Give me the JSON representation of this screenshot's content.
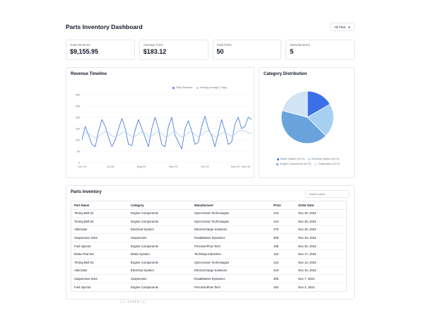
{
  "header": {
    "title": "Parts Inventory Dashboard",
    "range_label": "All Time"
  },
  "kpis": [
    {
      "label": "Total Revenue",
      "value": "$9,155.95"
    },
    {
      "label": "Average Price",
      "value": "$183.12"
    },
    {
      "label": "Total Parts",
      "value": "50"
    },
    {
      "label": "Manufacturers",
      "value": "5"
    }
  ],
  "timeline": {
    "title": "Revenue Timeline"
  },
  "category": {
    "title": "Category Distribution"
  },
  "inventory": {
    "title": "Parts Inventory",
    "search_placeholder": "Search parts...",
    "columns": [
      "Part Name",
      "Category",
      "Manufacturer",
      "Price",
      "Order Date"
    ],
    "rows": [
      [
        "Timing Belt Kit",
        "Engine Components",
        "SyncroGear Technologies",
        "144",
        "Nov 29, 2024"
      ],
      [
        "Timing Belt Kit",
        "Engine Components",
        "SyncroGear Technologies",
        "144",
        "Nov 29, 2024"
      ],
      [
        "Alternator",
        "Electrical System",
        "ElectroCharge Solutions",
        "270",
        "Nov 26, 2024"
      ],
      [
        "Suspension Strut",
        "Suspension",
        "RoadMaster Dynamics",
        "309",
        "Nov 23, 2024"
      ],
      [
        "Fuel Injector",
        "Engine Components",
        "PrecisionFlow Tech",
        "168",
        "Nov 20, 2024"
      ],
      [
        "Brake Pad Set",
        "Brake System",
        "TechStop Industries",
        "118",
        "Nov 17, 2024"
      ],
      [
        "Timing Belt Kit",
        "Engine Components",
        "SyncroGear Technologies",
        "124",
        "Nov 13, 2024"
      ],
      [
        "Alternator",
        "Electrical System",
        "ElectroCharge Solutions",
        "219",
        "Nov 10, 2024"
      ],
      [
        "Suspension Strut",
        "Suspension",
        "RoadMaster Dynamics",
        "305",
        "Nov 7, 2024"
      ],
      [
        "Fuel Injector",
        "Engine Components",
        "PrecisionFlow Tech",
        "192",
        "Nov 4, 2024"
      ]
    ],
    "pagination_label": "1 2 3 4 5"
  },
  "colors": {
    "daily": "#4f7fe0",
    "moving": "#a9cdf0",
    "grid": "#eef0f3",
    "pie": [
      "#3b6fe8",
      "#a6cff2",
      "#6aa3dc",
      "#d0e4f5"
    ]
  },
  "chart_data": [
    {
      "type": "line",
      "title": "",
      "xlabel": "",
      "ylabel": "",
      "ylim": [
        0,
        300
      ],
      "yticks": [
        "0",
        "50",
        "100",
        "150",
        "200",
        "250",
        "300"
      ],
      "x_tick_labels": [
        "Jun 26",
        "Jul 26",
        "Aug 25",
        "Sep 23",
        "Oct 22",
        "Nov 20",
        "Nov 29"
      ],
      "legend": "top-right",
      "grid": true,
      "series": [
        {
          "name": "Daily Revenue",
          "values": [
            100,
            160,
            120,
            80,
            70,
            140,
            190,
            160,
            110,
            70,
            100,
            150,
            195,
            150,
            80,
            75,
            145,
            190,
            150,
            110,
            70,
            150,
            200,
            150,
            80,
            70,
            160,
            200,
            120,
            90,
            60,
            150,
            185,
            140,
            80,
            90,
            160,
            205,
            150,
            120,
            70,
            130,
            190,
            140,
            80,
            90,
            170,
            200,
            150,
            160,
            200,
            190
          ]
        },
        {
          "name": "Moving Average (7 day)",
          "values": [
            125,
            130,
            128,
            118,
            110,
            115,
            128,
            138,
            132,
            118,
            112,
            120,
            132,
            136,
            126,
            114,
            116,
            128,
            136,
            128,
            116,
            118,
            130,
            138,
            128,
            114,
            116,
            132,
            140,
            126,
            112,
            118,
            132,
            136,
            124,
            114,
            122,
            136,
            140,
            126,
            114,
            118,
            130,
            134,
            124,
            116,
            126,
            140,
            142,
            138,
            130,
            132
          ]
        }
      ]
    },
    {
      "type": "pie",
      "labels": [
        "Brake System (16 %)",
        "Electrical System (20 %)",
        "Engine Components (40 %)",
        "Suspension (20 %)"
      ],
      "values": [
        16,
        20,
        40,
        20
      ]
    }
  ]
}
